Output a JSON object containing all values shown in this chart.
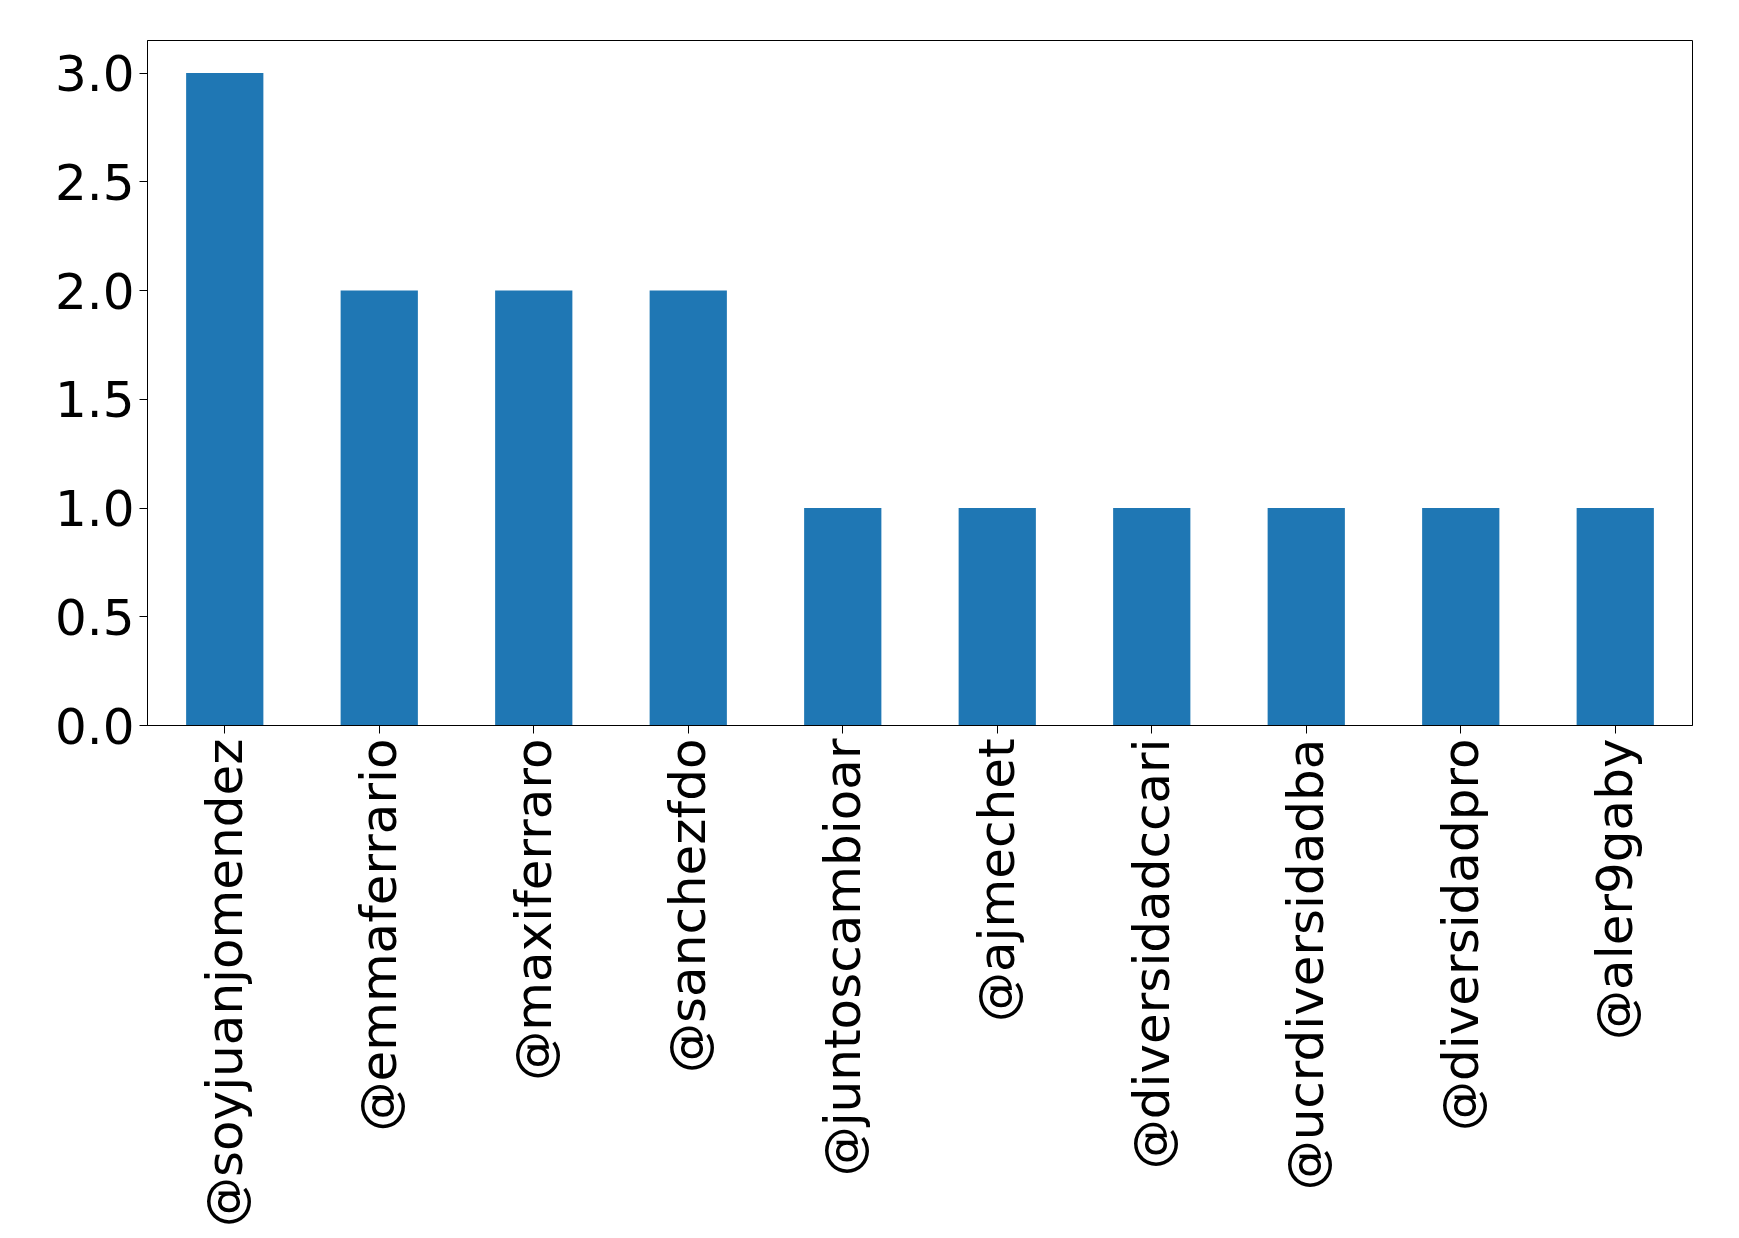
{
  "chart_data": {
    "type": "bar",
    "categories": [
      "@soyjuanjomendez",
      "@emmaferrario",
      "@maxiferraro",
      "@sanchezfdo",
      "@juntoscambioar",
      "@ajmechet",
      "@diversidadccari",
      "@ucrdiversidadba",
      "@diversidadpro",
      "@aler9gaby"
    ],
    "values": [
      3,
      2,
      2,
      2,
      1,
      1,
      1,
      1,
      1,
      1
    ],
    "color": "#1f77b4",
    "ylim": [
      0,
      3.15
    ],
    "yticks": [
      {
        "value": 0,
        "label": "0.0"
      },
      {
        "value": 0.5,
        "label": "0.5"
      },
      {
        "value": 1,
        "label": "1.0"
      },
      {
        "value": 1.5,
        "label": "1.5"
      },
      {
        "value": 2,
        "label": "2.0"
      },
      {
        "value": 2.5,
        "label": "2.5"
      },
      {
        "value": 3,
        "label": "3.0"
      }
    ],
    "grid": false
  }
}
